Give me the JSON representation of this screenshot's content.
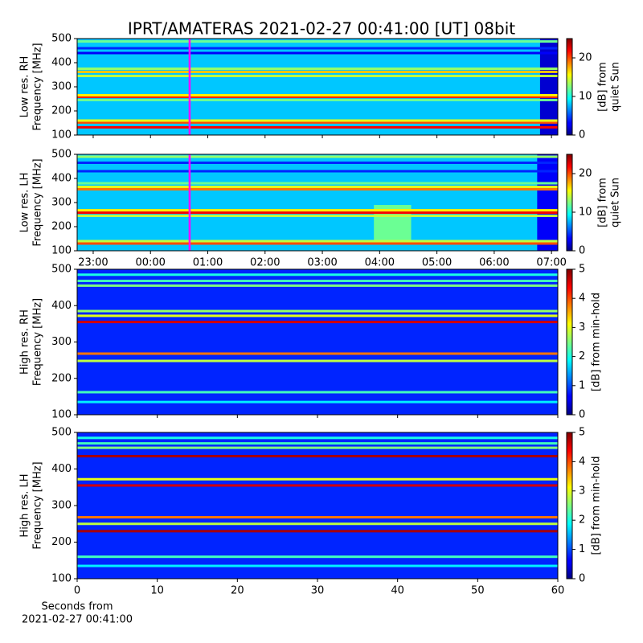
{
  "title": "IPRT/AMATERAS 2021-02-27 00:41:00 [UT]   08bit",
  "chart_data": [
    {
      "type": "heatmap",
      "colormap": "jet",
      "ylabel": [
        "Low res. RH",
        "Frequency [MHz]"
      ],
      "xlim": [
        22.72,
        31.11
      ],
      "xticks": [
        23,
        24,
        25,
        26,
        27,
        28,
        29,
        30,
        31
      ],
      "xticklabels": false,
      "ylim": [
        100,
        500
      ],
      "yticks": [
        100,
        200,
        300,
        400,
        500
      ],
      "clim": [
        0,
        25
      ],
      "cticks": [
        0,
        10,
        20
      ],
      "clabel": [
        "[dB] from",
        "quiet Sun"
      ],
      "background": 8,
      "bands": [
        {
          "freq": 132,
          "level": 22
        },
        {
          "freq": 152,
          "level": 20
        },
        {
          "freq": 160,
          "level": 15
        },
        {
          "freq": 245,
          "level": 12
        },
        {
          "freq": 258,
          "level": 21
        },
        {
          "freq": 265,
          "level": 16
        },
        {
          "freq": 345,
          "level": 14
        },
        {
          "freq": 362,
          "level": 17
        },
        {
          "freq": 375,
          "level": 13
        },
        {
          "freq": 440,
          "level": 3
        },
        {
          "freq": 460,
          "level": 4
        },
        {
          "freq": 488,
          "level": 12
        }
      ],
      "regions": [
        {
          "x": [
            30.8,
            31.11
          ],
          "freq": [
            100,
            500
          ],
          "level": 2
        }
      ],
      "marker": {
        "x": 24.683,
        "color": "#ff00ff"
      }
    },
    {
      "type": "heatmap",
      "colormap": "jet",
      "ylabel": [
        "Low res. LH",
        "Frequency [MHz]"
      ],
      "xlim": [
        22.72,
        31.11
      ],
      "xticks": [
        {
          "value": 23,
          "label": "23:00"
        },
        {
          "value": 24,
          "label": "00:00"
        },
        {
          "value": 25,
          "label": "01:00"
        },
        {
          "value": 26,
          "label": "02:00"
        },
        {
          "value": 27,
          "label": "03:00"
        },
        {
          "value": 28,
          "label": "04:00"
        },
        {
          "value": 29,
          "label": "05:00"
        },
        {
          "value": 30,
          "label": "06:00"
        },
        {
          "value": 31,
          "label": "07:00"
        }
      ],
      "xticklabels": true,
      "ylim": [
        100,
        500
      ],
      "yticks": [
        100,
        200,
        300,
        400,
        500
      ],
      "clim": [
        0,
        25
      ],
      "cticks": [
        0,
        10,
        20
      ],
      "clabel": [
        "[dB] from",
        "quiet Sun"
      ],
      "background": 8,
      "bands": [
        {
          "freq": 130,
          "level": 20
        },
        {
          "freq": 140,
          "level": 14
        },
        {
          "freq": 245,
          "level": 14
        },
        {
          "freq": 258,
          "level": 22
        },
        {
          "freq": 268,
          "level": 16
        },
        {
          "freq": 355,
          "level": 19
        },
        {
          "freq": 365,
          "level": 15
        },
        {
          "freq": 380,
          "level": 12
        },
        {
          "freq": 430,
          "level": 4
        },
        {
          "freq": 465,
          "level": 4
        },
        {
          "freq": 490,
          "level": 13
        }
      ],
      "regions": [
        {
          "x": [
            27.9,
            28.55
          ],
          "freq": [
            130,
            290
          ],
          "level": 12
        },
        {
          "x": [
            30.75,
            31.11
          ],
          "freq": [
            100,
            500
          ],
          "level": 3
        }
      ],
      "marker": {
        "x": 24.683,
        "color": "#ff00ff"
      }
    },
    {
      "type": "heatmap",
      "colormap": "jet",
      "ylabel": [
        "High res. RH",
        "Frequency [MHz]"
      ],
      "xlim": [
        0,
        60
      ],
      "xticks": [
        0,
        10,
        20,
        30,
        40,
        50,
        60
      ],
      "xticklabels": false,
      "ylim": [
        100,
        500
      ],
      "yticks": [
        100,
        200,
        300,
        400,
        500
      ],
      "clim": [
        0,
        5
      ],
      "cticks": [
        0,
        1,
        2,
        3,
        4,
        5
      ],
      "clabel": [
        "[dB] from min-hold"
      ],
      "background": 0.8,
      "bands": [
        {
          "freq": 135,
          "level": 1.8
        },
        {
          "freq": 162,
          "level": 2.2
        },
        {
          "freq": 248,
          "level": 2.8
        },
        {
          "freq": 268,
          "level": 3.8
        },
        {
          "freq": 355,
          "level": 4.6
        },
        {
          "freq": 372,
          "level": 3.0
        },
        {
          "freq": 385,
          "level": 2.6
        },
        {
          "freq": 455,
          "level": 2.5
        },
        {
          "freq": 468,
          "level": 2.2
        },
        {
          "freq": 485,
          "level": 2.0
        }
      ],
      "regions": []
    },
    {
      "type": "heatmap",
      "colormap": "jet",
      "ylabel": [
        "High res. LH",
        "Frequency [MHz]"
      ],
      "xlim": [
        0,
        60
      ],
      "xticks": [
        0,
        10,
        20,
        30,
        40,
        50,
        60
      ],
      "xticklabels": true,
      "xlabel": [
        "Seconds from",
        "2021-02-27 00:41:00"
      ],
      "ylim": [
        100,
        500
      ],
      "yticks": [
        100,
        200,
        300,
        400,
        500
      ],
      "clim": [
        0,
        5
      ],
      "cticks": [
        0,
        1,
        2,
        3,
        4,
        5
      ],
      "clabel": [
        "[dB] from min-hold"
      ],
      "background": 0.8,
      "bands": [
        {
          "freq": 135,
          "level": 1.8
        },
        {
          "freq": 160,
          "level": 2.2
        },
        {
          "freq": 230,
          "level": 4.8
        },
        {
          "freq": 250,
          "level": 2.8
        },
        {
          "freq": 268,
          "level": 3.8
        },
        {
          "freq": 355,
          "level": 4.6
        },
        {
          "freq": 372,
          "level": 3.0
        },
        {
          "freq": 435,
          "level": 4.8
        },
        {
          "freq": 458,
          "level": 2.5
        },
        {
          "freq": 470,
          "level": 2.2
        },
        {
          "freq": 485,
          "level": 2.0
        }
      ],
      "regions": []
    }
  ]
}
